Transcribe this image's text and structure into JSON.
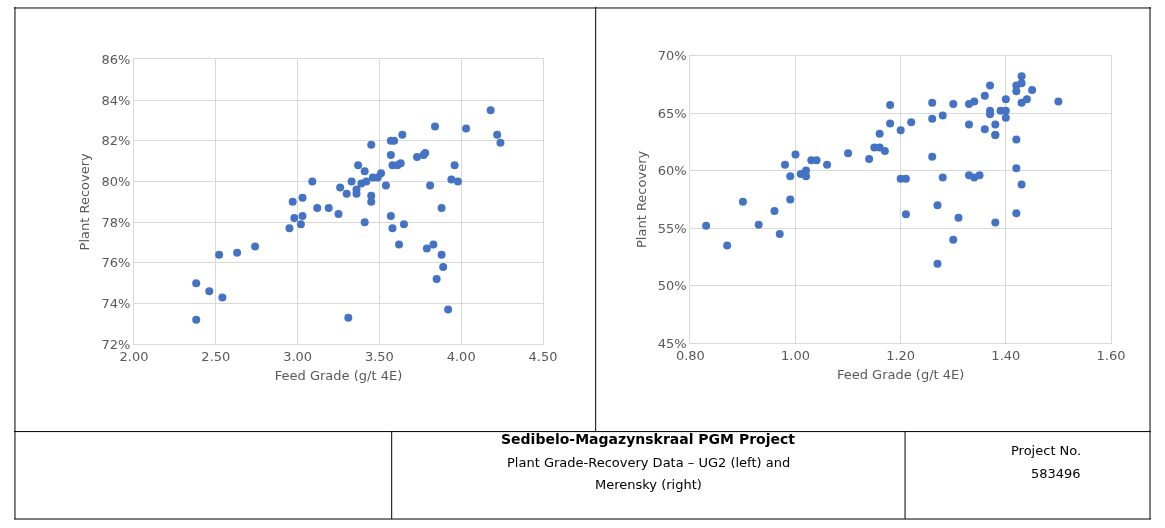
{
  "chart_data": [
    {
      "type": "scatter",
      "xlabel": "Feed Grade (g/t 4E)",
      "ylabel": "Plant Recovery",
      "marker": "circle",
      "grid": true,
      "xlim": [
        2.0,
        4.5
      ],
      "xticks": [
        {
          "value": 2.0,
          "label": "2.00"
        },
        {
          "value": 2.5,
          "label": "2.50"
        },
        {
          "value": 3.0,
          "label": "3.00"
        },
        {
          "value": 3.5,
          "label": "3.50"
        },
        {
          "value": 4.0,
          "label": "4.00"
        },
        {
          "value": 4.5,
          "label": "4.50"
        }
      ],
      "ylim": [
        72,
        86
      ],
      "yticks": [
        {
          "value": 72,
          "label": "72%"
        },
        {
          "value": 74,
          "label": "74%"
        },
        {
          "value": 76,
          "label": "76%"
        },
        {
          "value": 78,
          "label": "78%"
        },
        {
          "value": 80,
          "label": "80%"
        },
        {
          "value": 82,
          "label": "82%"
        },
        {
          "value": 84,
          "label": "84%"
        },
        {
          "value": 86,
          "label": "86%"
        }
      ],
      "series": [
        {
          "color": "#4472c4",
          "x": [
            2.38,
            2.38,
            2.46,
            2.54,
            2.52,
            2.63,
            2.74,
            2.95,
            2.97,
            2.98,
            3.02,
            3.03,
            3.03,
            3.09,
            3.12,
            3.19,
            3.25,
            3.26,
            3.3,
            3.31,
            3.33,
            3.36,
            3.36,
            3.37,
            3.39,
            3.41,
            3.41,
            3.42,
            3.45,
            3.45,
            3.45,
            3.46,
            3.49,
            3.51,
            3.54,
            3.57,
            3.57,
            3.59,
            3.57,
            3.58,
            3.58,
            3.61,
            3.63,
            3.62,
            3.64,
            3.65,
            3.73,
            3.78,
            3.77,
            3.79,
            3.81,
            3.83,
            3.84,
            3.85,
            3.88,
            3.88,
            3.89,
            3.92,
            3.94,
            3.96,
            3.98,
            4.03,
            4.18,
            4.22,
            4.24
          ],
          "values": [
            73.2,
            75.0,
            74.6,
            74.3,
            76.4,
            76.5,
            76.8,
            77.7,
            79.0,
            78.2,
            77.9,
            78.3,
            79.2,
            80.0,
            78.7,
            78.7,
            78.4,
            79.7,
            79.4,
            73.3,
            80.0,
            79.6,
            79.4,
            80.8,
            79.9,
            78.0,
            80.5,
            80.0,
            79.0,
            79.3,
            81.8,
            80.2,
            80.2,
            80.4,
            79.8,
            81.3,
            82.0,
            82.0,
            78.3,
            77.7,
            80.8,
            80.8,
            80.9,
            76.9,
            82.3,
            77.9,
            81.2,
            81.4,
            81.3,
            76.7,
            79.8,
            76.9,
            82.7,
            75.2,
            78.7,
            76.4,
            75.8,
            73.7,
            80.1,
            80.8,
            80.0,
            82.6,
            83.5,
            82.3,
            81.9
          ]
        }
      ]
    },
    {
      "type": "scatter",
      "xlabel": "Feed Grade (g/t 4E)",
      "ylabel": "Plant Recovery",
      "marker": "circle",
      "grid": true,
      "xlim": [
        0.8,
        1.6
      ],
      "xticks": [
        {
          "value": 0.8,
          "label": "0.80"
        },
        {
          "value": 1.0,
          "label": "1.00"
        },
        {
          "value": 1.2,
          "label": "1.20"
        },
        {
          "value": 1.4,
          "label": "1.40"
        },
        {
          "value": 1.6,
          "label": "1.60"
        }
      ],
      "ylim": [
        45,
        70
      ],
      "yticks": [
        {
          "value": 45,
          "label": "45%"
        },
        {
          "value": 50,
          "label": "50%"
        },
        {
          "value": 55,
          "label": "55%"
        },
        {
          "value": 60,
          "label": "60%"
        },
        {
          "value": 65,
          "label": "65%"
        },
        {
          "value": 70,
          "label": "70%"
        }
      ],
      "series": [
        {
          "color": "#4472c4",
          "x": [
            0.83,
            0.87,
            0.9,
            0.93,
            0.96,
            0.97,
            0.98,
            0.99,
            0.99,
            1.0,
            1.01,
            1.02,
            1.02,
            1.03,
            1.04,
            1.06,
            1.1,
            1.14,
            1.15,
            1.16,
            1.16,
            1.17,
            1.18,
            1.18,
            1.2,
            1.2,
            1.21,
            1.21,
            1.22,
            1.26,
            1.26,
            1.26,
            1.27,
            1.27,
            1.28,
            1.28,
            1.3,
            1.3,
            1.31,
            1.33,
            1.33,
            1.33,
            1.34,
            1.34,
            1.35,
            1.36,
            1.36,
            1.37,
            1.37,
            1.37,
            1.38,
            1.38,
            1.38,
            1.38,
            1.39,
            1.4,
            1.4,
            1.4,
            1.42,
            1.42,
            1.42,
            1.42,
            1.42,
            1.43,
            1.43,
            1.43,
            1.43,
            1.44,
            1.45,
            1.5
          ],
          "values": [
            55.2,
            53.5,
            57.3,
            55.3,
            56.5,
            54.5,
            60.5,
            57.5,
            59.5,
            61.4,
            59.7,
            60.0,
            59.5,
            60.9,
            60.9,
            60.5,
            61.5,
            61.0,
            62.0,
            63.2,
            62.0,
            61.7,
            65.7,
            64.1,
            63.5,
            59.3,
            59.3,
            56.2,
            64.2,
            64.5,
            65.9,
            61.2,
            57.0,
            51.9,
            59.4,
            64.8,
            54.0,
            65.8,
            55.9,
            65.8,
            64.0,
            59.6,
            59.4,
            66.0,
            59.6,
            66.5,
            63.6,
            65.2,
            67.4,
            64.9,
            64.0,
            63.1,
            63.1,
            55.5,
            65.2,
            66.2,
            65.2,
            64.6,
            60.2,
            56.3,
            62.7,
            66.9,
            67.4,
            67.6,
            65.9,
            68.2,
            58.8,
            66.2,
            67.0,
            66.0
          ]
        }
      ]
    },
    {
      "type": "other",
      "annotations": [
        "Sedibelo-Magazynskraal PGM Project",
        "Plant Grade-Recovery Data – UG2 (left) and",
        "Merensky (right)",
        "Project No.",
        "583496"
      ]
    }
  ]
}
